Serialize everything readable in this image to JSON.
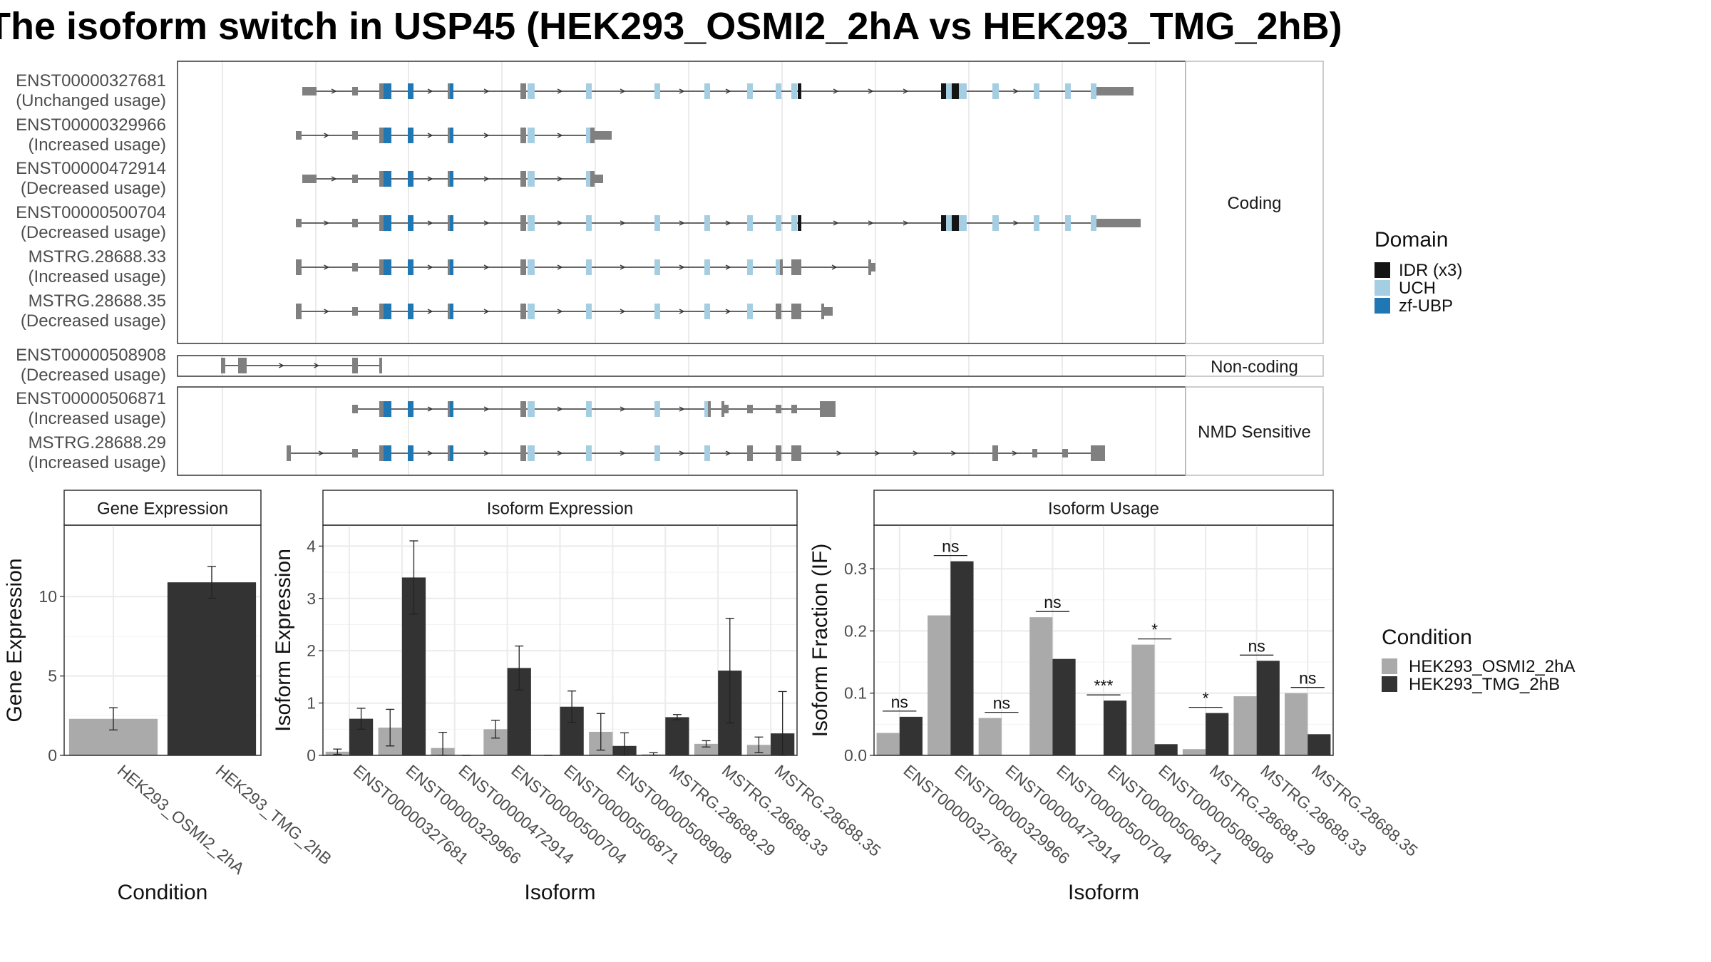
{
  "title": "The isoform switch in USP45 (HEK293_OSMI2_2hA vs HEK293_TMG_2hB)",
  "chart_data": [
    {
      "type": "gene-structure",
      "facets": [
        "Coding",
        "Non-coding",
        "NMD Sensitive"
      ],
      "transcripts": [
        {
          "id": "ENST00000327681",
          "usage": "(Unchanged usage)",
          "facet": "Coding"
        },
        {
          "id": "ENST00000329966",
          "usage": "(Increased usage)",
          "facet": "Coding"
        },
        {
          "id": "ENST00000472914",
          "usage": "(Decreased usage)",
          "facet": "Coding"
        },
        {
          "id": "ENST00000500704",
          "usage": "(Decreased usage)",
          "facet": "Coding"
        },
        {
          "id": "MSTRG.28688.33",
          "usage": "(Increased usage)",
          "facet": "Coding"
        },
        {
          "id": "MSTRG.28688.35",
          "usage": "(Decreased usage)",
          "facet": "Coding"
        },
        {
          "id": "ENST00000508908",
          "usage": "(Decreased usage)",
          "facet": "Non-coding"
        },
        {
          "id": "ENST00000506871",
          "usage": "(Increased usage)",
          "facet": "NMD Sensitive"
        },
        {
          "id": "MSTRG.28688.29",
          "usage": "(Increased usage)",
          "facet": "NMD Sensitive"
        }
      ],
      "domain_legend": {
        "title": "Domain",
        "items": [
          {
            "label": "IDR (x3)",
            "color": "#141414"
          },
          {
            "label": "UCH",
            "color": "#a6cee3"
          },
          {
            "label": "zf-UBP",
            "color": "#1f78b4"
          }
        ]
      }
    },
    {
      "type": "bar",
      "panel": "Gene Expression",
      "xlabel": "Condition",
      "ylabel": "Gene Expression",
      "ylim": [
        0,
        14.5
      ],
      "yticks": [
        0,
        5,
        10
      ],
      "categories": [
        "HEK293_OSMI2_2hA",
        "HEK293_TMG_2hB"
      ],
      "values": [
        2.3,
        10.9
      ],
      "errors": [
        0.7,
        1.0
      ],
      "colors": [
        "#aaaaaa",
        "#333333"
      ]
    },
    {
      "type": "bar",
      "panel": "Isoform Expression",
      "xlabel": "Isoform",
      "ylabel": "Isoform Expression",
      "ylim": [
        0,
        4.4
      ],
      "yticks": [
        0,
        1,
        2,
        3,
        4
      ],
      "categories": [
        "ENST00000327681",
        "ENST00000329966",
        "ENST00000472914",
        "ENST00000500704",
        "ENST00000506871",
        "ENST00000508908",
        "MSTRG.28688.29",
        "MSTRG.28688.33",
        "MSTRG.28688.35"
      ],
      "series": [
        {
          "name": "HEK293_OSMI2_2hA",
          "values": [
            0.07,
            0.53,
            0.14,
            0.5,
            0.0,
            0.45,
            0.02,
            0.22,
            0.2
          ],
          "errors": [
            0.05,
            0.35,
            0.3,
            0.17,
            0.0,
            0.35,
            0.03,
            0.06,
            0.15
          ]
        },
        {
          "name": "HEK293_TMG_2hB",
          "values": [
            0.7,
            3.4,
            0.0,
            1.67,
            0.93,
            0.18,
            0.73,
            1.62,
            0.42
          ],
          "errors": [
            0.2,
            0.7,
            0.0,
            0.42,
            0.3,
            0.25,
            0.05,
            1.0,
            0.8
          ]
        }
      ]
    },
    {
      "type": "bar",
      "panel": "Isoform Usage",
      "xlabel": "Isoform",
      "ylabel": "Isoform Fraction (IF)",
      "ylim": [
        0,
        0.37
      ],
      "yticks": [
        0.0,
        0.1,
        0.2,
        0.3
      ],
      "ytick_labels": [
        "0.0",
        "0.1",
        "0.2",
        "0.3"
      ],
      "categories": [
        "ENST00000327681",
        "ENST00000329966",
        "ENST00000472914",
        "ENST00000500704",
        "ENST00000506871",
        "ENST00000508908",
        "MSTRG.28688.29",
        "MSTRG.28688.33",
        "MSTRG.28688.35"
      ],
      "series": [
        {
          "name": "HEK293_OSMI2_2hA",
          "values": [
            0.036,
            0.225,
            0.06,
            0.222,
            0.0,
            0.178,
            0.01,
            0.095,
            0.1
          ]
        },
        {
          "name": "HEK293_TMG_2hB",
          "values": [
            0.062,
            0.312,
            0.0,
            0.155,
            0.088,
            0.018,
            0.068,
            0.152,
            0.034
          ]
        }
      ],
      "significance": [
        "ns",
        "ns",
        "ns",
        "ns",
        "***",
        "*",
        "*",
        "ns",
        "ns"
      ],
      "condition_legend": {
        "title": "Condition",
        "items": [
          {
            "label": "HEK293_OSMI2_2hA",
            "color": "#aaaaaa"
          },
          {
            "label": "HEK293_TMG_2hB",
            "color": "#333333"
          }
        ]
      }
    }
  ]
}
